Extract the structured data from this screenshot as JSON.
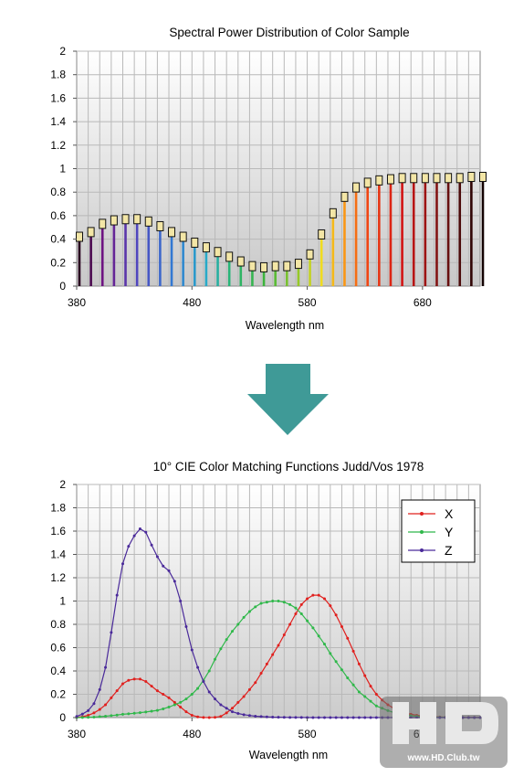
{
  "arrow": {
    "color": "#3f9a97"
  },
  "spd": {
    "title": "Spectral Power Distribution of Color Sample",
    "xlabel": "Wavelength nm",
    "xticks": [
      "380",
      "480",
      "580",
      "680"
    ],
    "yticks": [
      "0",
      "0.2",
      "0.4",
      "0.6",
      "0.8",
      "1",
      "1.2",
      "1.4",
      "1.6",
      "1.8",
      "2"
    ]
  },
  "cmf": {
    "title": "10° CIE Color Matching Functions Judd/Vos 1978",
    "xlabel": "Wavelength nm",
    "xticks": [
      "380",
      "480",
      "580",
      "680"
    ],
    "yticks": [
      "0",
      "0.2",
      "0.4",
      "0.6",
      "0.8",
      "1",
      "1.2",
      "1.4",
      "1.6",
      "1.8",
      "2"
    ],
    "legend": [
      "X",
      "Y",
      "Z"
    ]
  },
  "watermark": {
    "text": "www.HD.Club.tw"
  },
  "chart_data": [
    {
      "type": "bar",
      "title": "Spectral Power Distribution of Color Sample",
      "xlabel": "Wavelength nm",
      "ylabel": "",
      "xlim": [
        380,
        730
      ],
      "ylim": [
        0,
        2
      ],
      "grid": true,
      "x": [
        380,
        390,
        400,
        410,
        420,
        430,
        440,
        450,
        460,
        470,
        480,
        490,
        500,
        510,
        520,
        530,
        540,
        550,
        560,
        570,
        580,
        590,
        600,
        610,
        620,
        630,
        640,
        650,
        660,
        670,
        680,
        690,
        700,
        710,
        720,
        730
      ],
      "values": [
        0.42,
        0.46,
        0.53,
        0.56,
        0.57,
        0.57,
        0.55,
        0.51,
        0.46,
        0.42,
        0.37,
        0.33,
        0.29,
        0.25,
        0.21,
        0.17,
        0.16,
        0.17,
        0.17,
        0.19,
        0.27,
        0.44,
        0.62,
        0.76,
        0.84,
        0.88,
        0.9,
        0.91,
        0.92,
        0.92,
        0.92,
        0.92,
        0.92,
        0.92,
        0.93,
        0.93
      ]
    },
    {
      "type": "line",
      "title": "10° CIE Color Matching Functions Judd/Vos 1978",
      "xlabel": "Wavelength nm",
      "ylabel": "",
      "xlim": [
        380,
        730
      ],
      "ylim": [
        0,
        2
      ],
      "grid": true,
      "legend_position": "top-right",
      "x": [
        380,
        385,
        390,
        395,
        400,
        405,
        410,
        415,
        420,
        425,
        430,
        435,
        440,
        445,
        450,
        455,
        460,
        465,
        470,
        475,
        480,
        485,
        490,
        495,
        500,
        505,
        510,
        515,
        520,
        525,
        530,
        535,
        540,
        545,
        550,
        555,
        560,
        565,
        570,
        575,
        580,
        585,
        590,
        595,
        600,
        605,
        610,
        615,
        620,
        625,
        630,
        635,
        640,
        645,
        650,
        655,
        660,
        665,
        670,
        675,
        680,
        685,
        690,
        695,
        700,
        705,
        710,
        715,
        720,
        725,
        730
      ],
      "series": [
        {
          "name": "X",
          "color": "#e0201e",
          "values": [
            0.002,
            0.007,
            0.02,
            0.04,
            0.07,
            0.11,
            0.17,
            0.23,
            0.29,
            0.32,
            0.33,
            0.33,
            0.31,
            0.27,
            0.23,
            0.2,
            0.17,
            0.13,
            0.09,
            0.05,
            0.02,
            0.006,
            0.001,
            0.0,
            0.002,
            0.01,
            0.04,
            0.08,
            0.13,
            0.18,
            0.24,
            0.3,
            0.38,
            0.46,
            0.54,
            0.62,
            0.71,
            0.8,
            0.89,
            0.97,
            1.02,
            1.05,
            1.05,
            1.02,
            0.96,
            0.88,
            0.78,
            0.68,
            0.57,
            0.46,
            0.36,
            0.27,
            0.2,
            0.15,
            0.11,
            0.08,
            0.055,
            0.04,
            0.028,
            0.02,
            0.014,
            0.01,
            0.007,
            0.005,
            0.003,
            0.002,
            0.002,
            0.001,
            0.001,
            0.001,
            0.0
          ]
        },
        {
          "name": "Y",
          "color": "#2fb84a",
          "values": [
            0.0,
            0.001,
            0.002,
            0.004,
            0.008,
            0.012,
            0.017,
            0.022,
            0.028,
            0.032,
            0.037,
            0.042,
            0.048,
            0.055,
            0.062,
            0.075,
            0.09,
            0.11,
            0.13,
            0.16,
            0.2,
            0.25,
            0.32,
            0.4,
            0.5,
            0.59,
            0.67,
            0.74,
            0.8,
            0.86,
            0.91,
            0.95,
            0.98,
            0.99,
            1.0,
            1.0,
            0.99,
            0.97,
            0.94,
            0.89,
            0.83,
            0.77,
            0.7,
            0.63,
            0.55,
            0.48,
            0.41,
            0.34,
            0.28,
            0.22,
            0.18,
            0.14,
            0.1,
            0.08,
            0.06,
            0.045,
            0.032,
            0.023,
            0.016,
            0.011,
            0.008,
            0.005,
            0.004,
            0.003,
            0.002,
            0.001,
            0.001,
            0.001,
            0.0,
            0.0,
            0.0
          ]
        },
        {
          "name": "Z",
          "color": "#4a2a9a",
          "values": [
            0.01,
            0.03,
            0.06,
            0.12,
            0.24,
            0.43,
            0.73,
            1.05,
            1.32,
            1.47,
            1.56,
            1.62,
            1.59,
            1.48,
            1.38,
            1.3,
            1.26,
            1.17,
            1.0,
            0.78,
            0.58,
            0.43,
            0.31,
            0.22,
            0.16,
            0.11,
            0.08,
            0.05,
            0.035,
            0.025,
            0.018,
            0.012,
            0.009,
            0.006,
            0.004,
            0.003,
            0.002,
            0.001,
            0.001,
            0.001,
            0.0,
            0.0,
            0.0,
            0.0,
            0.0,
            0.0,
            0.0,
            0.0,
            0.0,
            0.0,
            0.0,
            0.0,
            0.0,
            0.0,
            0.0,
            0.0,
            0.0,
            0.0,
            0.0,
            0.0,
            0.0,
            0.0,
            0.0,
            0.0,
            0.0,
            0.0,
            0.0,
            0.0,
            0.0,
            0.0,
            0.0
          ]
        }
      ]
    }
  ]
}
